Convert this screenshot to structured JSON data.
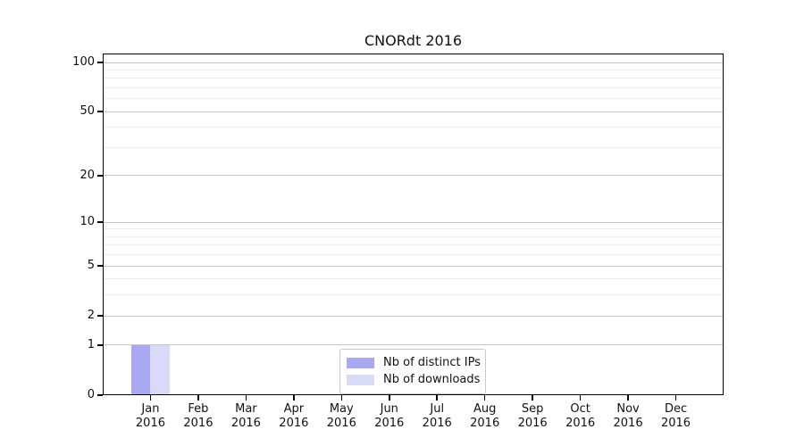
{
  "chart_data": {
    "type": "bar",
    "title": "CNORdt 2016",
    "months": [
      "Jan",
      "Feb",
      "Mar",
      "Apr",
      "May",
      "Jun",
      "Jul",
      "Aug",
      "Sep",
      "Oct",
      "Nov",
      "Dec"
    ],
    "year_label": "2016",
    "series": [
      {
        "name": "Nb of distinct IPs",
        "color": "#a8a8f3",
        "values": [
          1,
          0,
          0,
          0,
          0,
          0,
          0,
          0,
          0,
          0,
          0,
          0
        ]
      },
      {
        "name": "Nb of downloads",
        "color": "#d9d9f8",
        "values": [
          1,
          0,
          0,
          0,
          0,
          0,
          0,
          0,
          0,
          0,
          0,
          0
        ]
      }
    ],
    "y_scale": "log10(1+y)",
    "y_major_ticks": [
      0,
      1,
      2,
      5,
      10,
      20,
      50,
      100
    ],
    "y_minor_gridlines": [
      3,
      4,
      6,
      7,
      8,
      9,
      30,
      40,
      60,
      70,
      80,
      90
    ],
    "ylim": [
      0,
      115
    ],
    "grid": true,
    "legend_position": "bottom-center",
    "colors": {
      "axis": "#000000",
      "gridline_major": "#c6c6c6",
      "gridline_minor": "#ececec",
      "text": "#111111",
      "background": "#ffffff"
    }
  }
}
